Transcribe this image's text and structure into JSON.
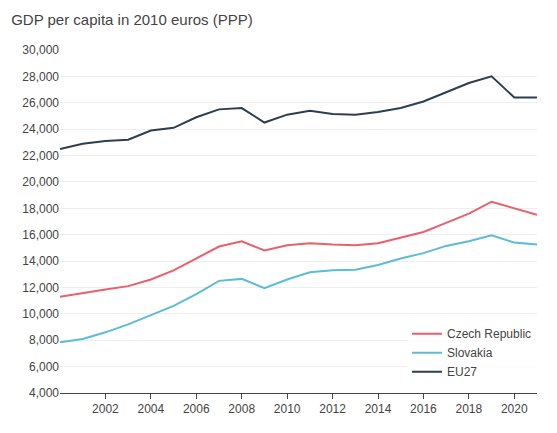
{
  "chart_data": {
    "type": "line",
    "title": "GDP per capita in 2010 euros (PPP)",
    "x": [
      2000,
      2001,
      2002,
      2003,
      2004,
      2005,
      2006,
      2007,
      2008,
      2009,
      2010,
      2011,
      2012,
      2013,
      2014,
      2015,
      2016,
      2017,
      2018,
      2019,
      2020,
      2021
    ],
    "series": [
      {
        "name": "Czech Republic",
        "color": "#e8606a",
        "values": [
          11300,
          11600,
          11850,
          12100,
          12600,
          13300,
          14200,
          15100,
          15500,
          14800,
          15200,
          15350,
          15250,
          15200,
          15350,
          15750,
          16200,
          16900,
          17600,
          18500,
          18000,
          17500
        ]
      },
      {
        "name": "Slovakia",
        "color": "#5bbcd6",
        "values": [
          7850,
          8100,
          8600,
          9200,
          9900,
          10600,
          11500,
          12500,
          12650,
          11950,
          12600,
          13150,
          13300,
          13350,
          13700,
          14200,
          14600,
          15150,
          15500,
          15950,
          15400,
          15250
        ]
      },
      {
        "name": "EU27",
        "color": "#2c3e50",
        "values": [
          22500,
          22900,
          23100,
          23200,
          23900,
          24100,
          24900,
          25500,
          25600,
          24500,
          25100,
          25400,
          25150,
          25100,
          25300,
          25600,
          26100,
          26800,
          27500,
          28000,
          26400,
          26400
        ]
      }
    ],
    "xlim": [
      2000,
      2021
    ],
    "xticks": [
      2002,
      2004,
      2006,
      2008,
      2010,
      2012,
      2014,
      2016,
      2018,
      2020
    ],
    "ylim": [
      4000,
      30000
    ],
    "yticks": [
      {
        "value": 4000,
        "label": "4,000"
      },
      {
        "value": 6000,
        "label": "6,000"
      },
      {
        "value": 8000,
        "label": "8,000"
      },
      {
        "value": 10000,
        "label": "10,000"
      },
      {
        "value": 12000,
        "label": "12,000"
      },
      {
        "value": 14000,
        "label": "14,000"
      },
      {
        "value": 16000,
        "label": "16,000"
      },
      {
        "value": 18000,
        "label": "18,000"
      },
      {
        "value": 20000,
        "label": "20,000"
      },
      {
        "value": 22000,
        "label": "22,000"
      },
      {
        "value": 24000,
        "label": "24,000"
      },
      {
        "value": 26000,
        "label": "26,000"
      },
      {
        "value": 28000,
        "label": "28,000"
      },
      {
        "value": 30000,
        "label": "30,000"
      }
    ],
    "grid": true,
    "legend": "lower right"
  }
}
